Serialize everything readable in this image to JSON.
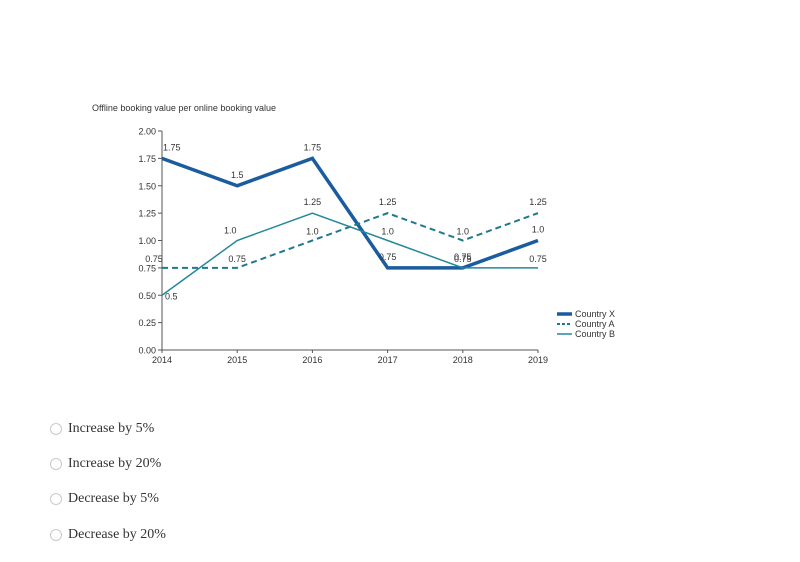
{
  "chart_data": {
    "type": "line",
    "title": "Offline booking value per online booking value",
    "xlabel": "",
    "ylabel": "",
    "categories": [
      "2014",
      "2015",
      "2016",
      "2017",
      "2018",
      "2019"
    ],
    "ylim": [
      0,
      2
    ],
    "yticks": [
      "0.00",
      "0.25",
      "0.50",
      "0.75",
      "1.00",
      "1.25",
      "1.50",
      "1.75",
      "2.00"
    ],
    "grid": false,
    "legend_position": "right",
    "series": [
      {
        "name": "Country X",
        "values": [
          1.75,
          1.5,
          1.75,
          0.75,
          0.75,
          1.0
        ],
        "labels": [
          "1.75",
          "1.5",
          "1.75",
          "0.75",
          "0.75",
          "1.0"
        ],
        "color": "#1a5c9e",
        "style": "thick"
      },
      {
        "name": "Country A",
        "values": [
          0.75,
          0.75,
          1.0,
          1.25,
          1.0,
          1.25
        ],
        "labels": [
          "0.75",
          "0.75",
          "1.0",
          "1.25",
          "1.0",
          "1.25"
        ],
        "color": "#1e7a8c",
        "style": "dashed"
      },
      {
        "name": "Country B",
        "values": [
          0.5,
          1.0,
          1.25,
          1.0,
          0.75,
          0.75
        ],
        "labels": [
          "0.5",
          "1.0",
          "1.25",
          "1.0",
          "0.75",
          "0.75"
        ],
        "color": "#23889a",
        "style": "thin"
      }
    ]
  },
  "options": [
    {
      "label": "Increase by 5%"
    },
    {
      "label": "Increase by 20%"
    },
    {
      "label": "Decrease by 5%"
    },
    {
      "label": "Decrease by 20%"
    }
  ]
}
